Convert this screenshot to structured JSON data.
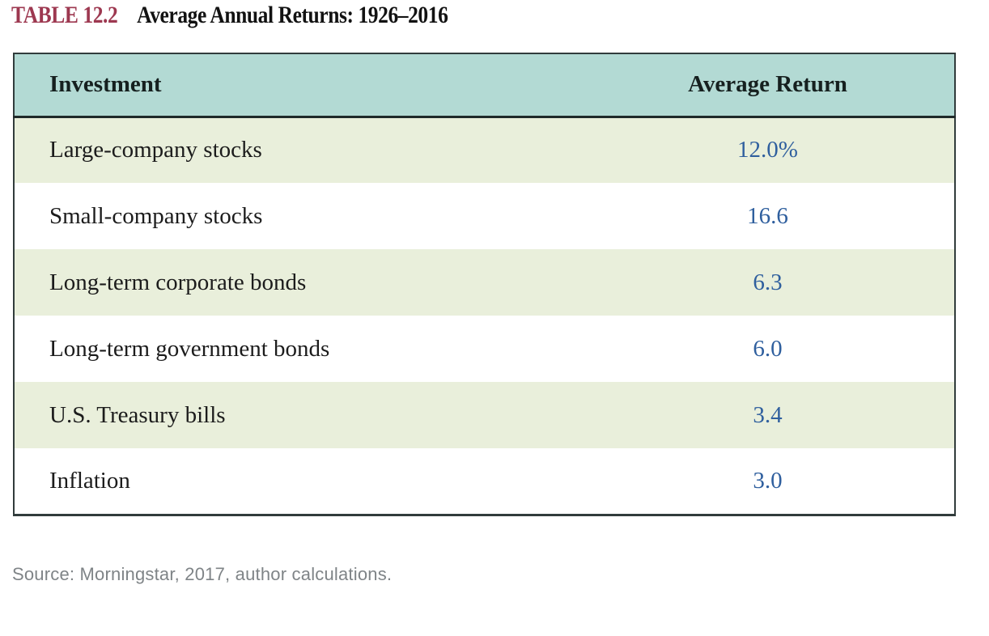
{
  "title": {
    "label": "TABLE 12.2",
    "text": "Average Annual Returns: 1926–2016"
  },
  "table": {
    "headers": [
      "Investment",
      "Average Return"
    ],
    "rows": [
      {
        "investment": "Large-company stocks",
        "average_return": "12.0%"
      },
      {
        "investment": "Small-company stocks",
        "average_return": "16.6"
      },
      {
        "investment": "Long-term corporate bonds",
        "average_return": "6.3"
      },
      {
        "investment": "Long-term government bonds",
        "average_return": "6.0"
      },
      {
        "investment": "U.S. Treasury bills",
        "average_return": "3.4"
      },
      {
        "investment": "Inflation",
        "average_return": "3.0"
      }
    ]
  },
  "source": "Source: Morningstar, 2017, author calculations.",
  "chart_data": {
    "type": "table",
    "title": "Average Annual Returns: 1926–2016",
    "categories": [
      "Large-company stocks",
      "Small-company stocks",
      "Long-term corporate bonds",
      "Long-term government bonds",
      "U.S. Treasury bills",
      "Inflation"
    ],
    "values": [
      12.0,
      16.6,
      6.3,
      6.0,
      3.4,
      3.0
    ],
    "value_unit": "percent"
  },
  "colors": {
    "title_label": "#9d3850",
    "header_bg": "#b3dad4",
    "row_alt_bg": "#e9efdb",
    "value_text": "#2f5f9e",
    "border_dark": "#313c3c",
    "source_text": "#7f8487"
  }
}
